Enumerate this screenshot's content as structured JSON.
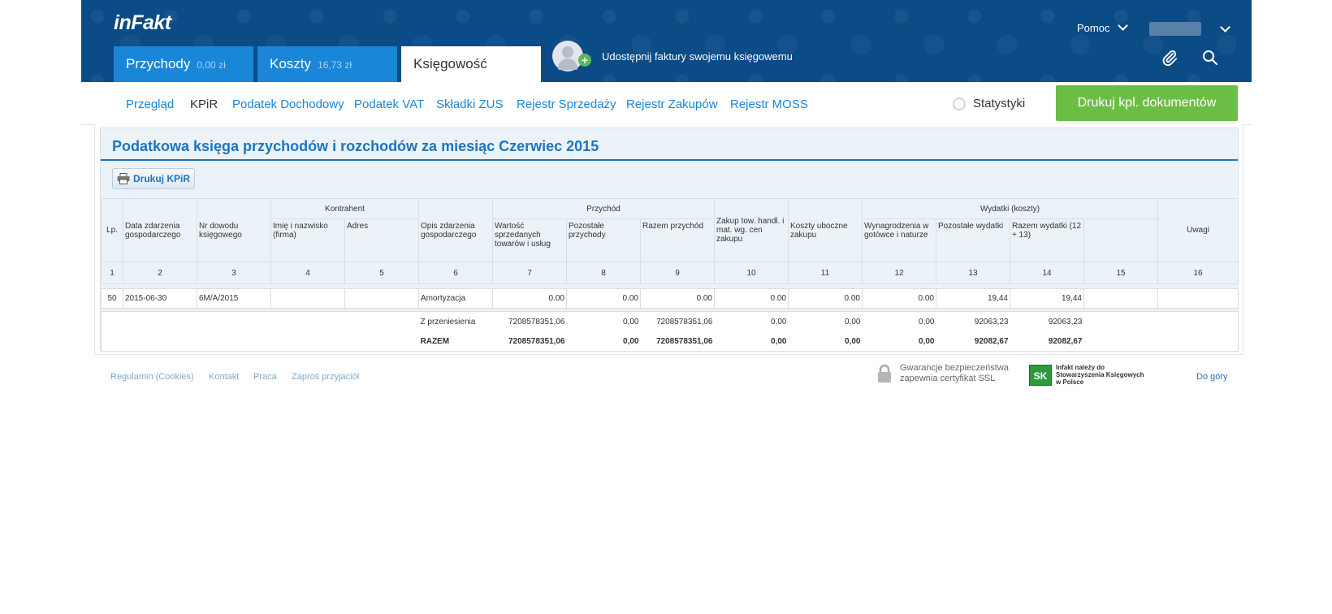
{
  "header": {
    "logo": "inFakt",
    "tabs": [
      {
        "label": "Przychody",
        "amount": "0,00 zł"
      },
      {
        "label": "Koszty",
        "amount": "16,73 zł"
      },
      {
        "label": "Księgowość"
      }
    ],
    "share_text": "Udostępnij faktury swojemu księgowemu",
    "help_label": "Pomoc"
  },
  "subnav": {
    "items": [
      "Przegląd",
      "KPiR",
      "Podatek Dochodowy",
      "Podatek VAT",
      "Składki ZUS",
      "Rejestr Sprzedaży",
      "Rejestr Zakupów",
      "Rejestr MOSS"
    ],
    "stats_label": "Statystyki",
    "print_docs_label": "Drukuj kpl. dokumentów"
  },
  "panel": {
    "title": "Podatkowa księga przychodów i rozchodów za miesiąc Czerwiec 2015",
    "print_label": "Drukuj KPiR"
  },
  "table": {
    "group_headers": {
      "kontrahent": "Kontrahent",
      "przychod": "Przychód",
      "wydatki": "Wydatki (koszty)"
    },
    "headers": {
      "lp": "Lp.",
      "data": "Data zdarzenia gospodarczego",
      "nr": "Nr dowodu księgowego",
      "imie": "Imię i nazwisko (firma)",
      "adres": "Adres",
      "opis": "Opis zdarzenia gospodarczego",
      "wartosc": "Wartość sprzedanych towarów i usług",
      "pozostale_przych": "Pozostałe przychody",
      "razem_przych": "Razem przychód",
      "zakup": "Zakup tow. handl. i mat. wg. cen zakupu",
      "koszty": "Koszty uboczne zakupu",
      "wynagrodzenia": "Wynagrodzenia w gotówce i naturze",
      "pozostale_wyd": "Pozostałe wydatki",
      "razem_wyd": "Razem wydatki (12 + 13)",
      "uwagi": "Uwagi"
    },
    "col_numbers": [
      "1",
      "2",
      "3",
      "4",
      "5",
      "6",
      "7",
      "8",
      "9",
      "10",
      "11",
      "12",
      "13",
      "14",
      "15",
      "16"
    ],
    "row": {
      "lp": "50",
      "data": "2015-06-30",
      "nr": "6M/A/2015",
      "imie": "",
      "adres": "",
      "opis": "Amortyzacja",
      "c7": "0.00",
      "c8": "0.00",
      "c9": "0.00",
      "c10": "0.00",
      "c11": "0.00",
      "c12": "0.00",
      "c13": "19,44",
      "c14": "19,44",
      "c15": "",
      "c16": ""
    },
    "przeniesienia": {
      "label": "Z przeniesienia",
      "c7": "7208578351,06",
      "c8": "0,00",
      "c9": "7208578351,06",
      "c10": "0,00",
      "c11": "0,00",
      "c12": "0,00",
      "c13": "92063,23",
      "c14": "92063,23"
    },
    "razem": {
      "label": "RAZEM",
      "c7": "7208578351,06",
      "c8": "0,00",
      "c9": "7208578351,06",
      "c10": "0,00",
      "c11": "0,00",
      "c12": "0,00",
      "c13": "92082,67",
      "c14": "92082,67"
    }
  },
  "footer": {
    "links": [
      "Regulamin (Cookies)",
      "Kontakt",
      "Praca",
      "Zaproś przyjaciół"
    ],
    "ssl_line1": "Gwarancje bezpieczeństwa",
    "ssl_line2": "zapewnia certyfikat SSL",
    "skwp_line1": "Infakt należy do",
    "skwp_line2": "Stowarzyszenia Księgowych",
    "skwp_line3": "w Polsce",
    "top_link": "Do góry"
  },
  "colors": {
    "header_bg": "#0b4b86",
    "tab_blue": "#1a86d8",
    "accent_green": "#6cbd45",
    "title_blue": "#1c75c0"
  }
}
